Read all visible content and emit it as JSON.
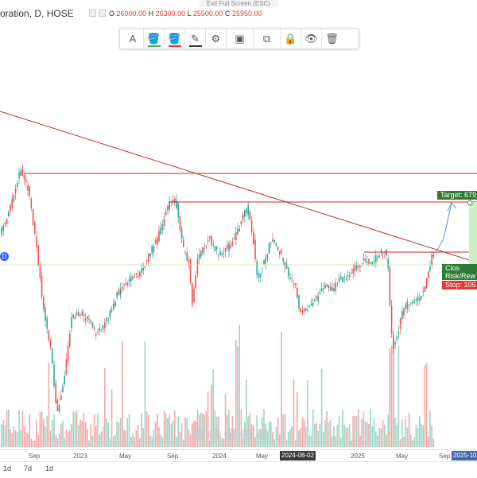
{
  "top": {
    "exit_fullscreen": "Exit Full Screen (ESC)",
    "symbol_text": "oration, D, HOSE",
    "ohlc": {
      "o_label": "O",
      "o_value": "26000.00",
      "h_label": "H",
      "h_value": "26300.00",
      "l_label": "L",
      "l_value": "25500.00",
      "c_label": "C",
      "c_value": "25950.00"
    }
  },
  "toolbar": {
    "items": [
      {
        "name": "text-icon",
        "glyph": "A"
      },
      {
        "name": "fill-bucket-icon",
        "glyph": "🪣"
      },
      {
        "name": "fill-bucket-alt-icon",
        "glyph": "🪣"
      },
      {
        "name": "pencil-icon",
        "glyph": "✎"
      },
      {
        "name": "gear-icon",
        "glyph": "⚙"
      },
      {
        "name": "layer-order-icon",
        "glyph": "▣"
      },
      {
        "name": "clone-icon",
        "glyph": "⧉"
      },
      {
        "name": "lock-icon",
        "glyph": "🔒"
      },
      {
        "name": "eye-icon",
        "glyph": "👁"
      },
      {
        "name": "trash-icon",
        "glyph": "🗑"
      }
    ],
    "underline_colors": [
      "#4caf50",
      "#e53935",
      "#333333"
    ]
  },
  "xaxis": {
    "labels": [
      "Sep",
      "2023",
      "May",
      "Sep",
      "2024",
      "May",
      "2025",
      "May",
      "Sep"
    ],
    "crosshair_date": "2024-08-02",
    "end_date": "2025-10-"
  },
  "annotations": {
    "target": "Target: 679",
    "close": "Clos",
    "risk_reward": "Risk/Rew",
    "stop": "Stop: 106",
    "marker": "D"
  },
  "timeframes": [
    "1d",
    "7d",
    "1d"
  ],
  "colors": {
    "up": "#26a69a",
    "down": "#ef5350",
    "trendline": "#c62828",
    "target_green": "#2e7d32",
    "stop_red": "#e53935",
    "projection_blue": "#5c8fd6",
    "crosshair_box": "#3a3a3a",
    "end_date_box": "#4267b2"
  },
  "chart_data": {
    "type": "candlestick",
    "series": [
      {
        "name": "price",
        "values": []
      }
    ]
  }
}
